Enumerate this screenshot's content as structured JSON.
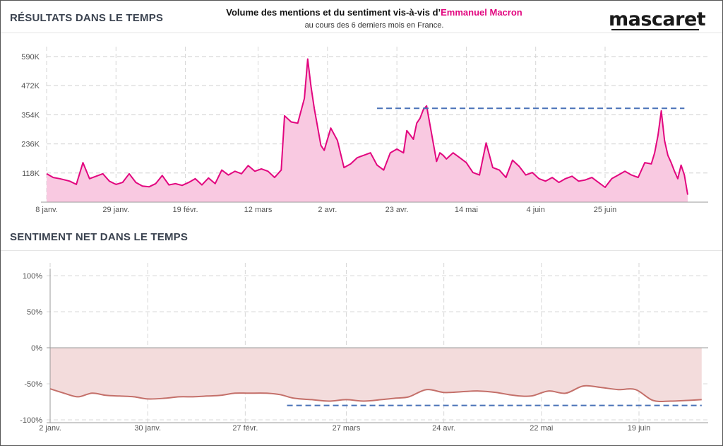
{
  "header": {
    "title_prefix": "Volume des mentions et du sentiment vis-à-vis d’",
    "title_highlight": "Emmanuel Macron",
    "subtitle": "au cours des 6 derniers mois en France.",
    "logo": "mascaret"
  },
  "colors": {
    "accent": "#e2067f",
    "area_fill": "#f9c9e1",
    "sentiment_line": "#c4706a",
    "sentiment_fill": "#f3dcdc",
    "reference_dash": "#4a72b8"
  },
  "chart_data": [
    {
      "type": "area",
      "title": "RÉSULTATS DANS LE TEMPS",
      "y_ticks": [
        118000,
        236000,
        354000,
        472000,
        590000
      ],
      "y_tick_labels": [
        "118K",
        "236K",
        "354K",
        "472K",
        "590K"
      ],
      "ylim": [
        0,
        630000
      ],
      "x_tick_labels": [
        "8 janv.",
        "29 janv.",
        "19 févr.",
        "12 mars",
        "2 avr.",
        "23 avr.",
        "14 mai",
        "4 juin",
        "25 juin"
      ],
      "x_ticks": [
        "2024-01-08",
        "2024-01-29",
        "2024-02-19",
        "2024-03-12",
        "2024-04-02",
        "2024-04-23",
        "2024-05-14",
        "2024-06-04",
        "2024-06-25"
      ],
      "grid": true,
      "series": [
        {
          "points": [
            [
              "2024-01-08",
              115000
            ],
            [
              "2024-01-10",
              100000
            ],
            [
              "2024-01-12",
              95000
            ],
            [
              "2024-01-15",
              85000
            ],
            [
              "2024-01-17",
              72000
            ],
            [
              "2024-01-19",
              160000
            ],
            [
              "2024-01-21",
              95000
            ],
            [
              "2024-01-23",
              105000
            ],
            [
              "2024-01-25",
              115000
            ],
            [
              "2024-01-27",
              85000
            ],
            [
              "2024-01-29",
              72000
            ],
            [
              "2024-01-31",
              80000
            ],
            [
              "2024-02-02",
              115000
            ],
            [
              "2024-02-04",
              80000
            ],
            [
              "2024-02-06",
              65000
            ],
            [
              "2024-02-08",
              62000
            ],
            [
              "2024-02-10",
              75000
            ],
            [
              "2024-02-12",
              108000
            ],
            [
              "2024-02-14",
              70000
            ],
            [
              "2024-02-16",
              75000
            ],
            [
              "2024-02-18",
              68000
            ],
            [
              "2024-02-20",
              80000
            ],
            [
              "2024-02-22",
              95000
            ],
            [
              "2024-02-24",
              70000
            ],
            [
              "2024-02-26",
              98000
            ],
            [
              "2024-02-28",
              75000
            ],
            [
              "2024-03-01",
              130000
            ],
            [
              "2024-03-03",
              110000
            ],
            [
              "2024-03-05",
              125000
            ],
            [
              "2024-03-07",
              115000
            ],
            [
              "2024-03-09",
              148000
            ],
            [
              "2024-03-11",
              125000
            ],
            [
              "2024-03-13",
              135000
            ],
            [
              "2024-03-15",
              125000
            ],
            [
              "2024-03-17",
              100000
            ],
            [
              "2024-03-19",
              130000
            ],
            [
              "2024-03-20",
              350000
            ],
            [
              "2024-03-22",
              325000
            ],
            [
              "2024-03-24",
              320000
            ],
            [
              "2024-03-26",
              420000
            ],
            [
              "2024-03-27",
              580000
            ],
            [
              "2024-03-28",
              470000
            ],
            [
              "2024-03-29",
              380000
            ],
            [
              "2024-03-31",
              230000
            ],
            [
              "2024-04-01",
              210000
            ],
            [
              "2024-04-03",
              300000
            ],
            [
              "2024-04-05",
              250000
            ],
            [
              "2024-04-07",
              140000
            ],
            [
              "2024-04-09",
              155000
            ],
            [
              "2024-04-11",
              180000
            ],
            [
              "2024-04-13",
              190000
            ],
            [
              "2024-04-15",
              200000
            ],
            [
              "2024-04-17",
              150000
            ],
            [
              "2024-04-19",
              130000
            ],
            [
              "2024-04-21",
              200000
            ],
            [
              "2024-04-23",
              215000
            ],
            [
              "2024-04-25",
              200000
            ],
            [
              "2024-04-26",
              290000
            ],
            [
              "2024-04-28",
              255000
            ],
            [
              "2024-04-29",
              320000
            ],
            [
              "2024-04-30",
              340000
            ],
            [
              "2024-05-01",
              375000
            ],
            [
              "2024-05-02",
              390000
            ],
            [
              "2024-05-04",
              240000
            ],
            [
              "2024-05-05",
              165000
            ],
            [
              "2024-05-06",
              200000
            ],
            [
              "2024-05-07",
              190000
            ],
            [
              "2024-05-08",
              175000
            ],
            [
              "2024-05-10",
              200000
            ],
            [
              "2024-05-12",
              180000
            ],
            [
              "2024-05-14",
              160000
            ],
            [
              "2024-05-16",
              120000
            ],
            [
              "2024-05-18",
              110000
            ],
            [
              "2024-05-20",
              240000
            ],
            [
              "2024-05-22",
              140000
            ],
            [
              "2024-05-24",
              130000
            ],
            [
              "2024-05-26",
              100000
            ],
            [
              "2024-05-28",
              170000
            ],
            [
              "2024-05-30",
              145000
            ],
            [
              "2024-06-01",
              110000
            ],
            [
              "2024-06-03",
              120000
            ],
            [
              "2024-06-05",
              95000
            ],
            [
              "2024-06-07",
              85000
            ],
            [
              "2024-06-09",
              100000
            ],
            [
              "2024-06-11",
              80000
            ],
            [
              "2024-06-13",
              95000
            ],
            [
              "2024-06-15",
              105000
            ],
            [
              "2024-06-17",
              85000
            ],
            [
              "2024-06-19",
              90000
            ],
            [
              "2024-06-21",
              100000
            ],
            [
              "2024-06-23",
              80000
            ],
            [
              "2024-06-25",
              60000
            ],
            [
              "2024-06-27",
              95000
            ],
            [
              "2024-06-29",
              110000
            ],
            [
              "2024-07-01",
              125000
            ],
            [
              "2024-07-03",
              110000
            ],
            [
              "2024-07-05",
              100000
            ],
            [
              "2024-07-07",
              160000
            ],
            [
              "2024-07-09",
              155000
            ],
            [
              "2024-07-10",
              200000
            ],
            [
              "2024-07-11",
              270000
            ],
            [
              "2024-07-12",
              370000
            ],
            [
              "2024-07-13",
              250000
            ],
            [
              "2024-07-14",
              190000
            ],
            [
              "2024-07-15",
              160000
            ],
            [
              "2024-07-16",
              125000
            ],
            [
              "2024-07-17",
              95000
            ],
            [
              "2024-07-18",
              150000
            ],
            [
              "2024-07-19",
              110000
            ],
            [
              "2024-07-20",
              30000
            ]
          ]
        }
      ],
      "reference_line": {
        "y": 380000,
        "from": "2024-04-17",
        "to": "2024-07-19",
        "style": "dashed"
      }
    },
    {
      "type": "area",
      "title": "SENTIMENT NET DANS LE TEMPS",
      "y_ticks": [
        100,
        50,
        0,
        -50,
        -100
      ],
      "y_tick_labels": [
        "100%",
        "50%",
        "0%",
        "-50%",
        "-100%"
      ],
      "ylim": [
        -100,
        100
      ],
      "x_tick_labels": [
        "2 janv.",
        "30 janv.",
        "27 févr.",
        "27 mars",
        "24 avr.",
        "22 mai",
        "19 juin"
      ],
      "x_ticks": [
        "2024-01-02",
        "2024-01-30",
        "2024-02-27",
        "2024-03-27",
        "2024-04-24",
        "2024-05-22",
        "2024-06-19"
      ],
      "grid": true,
      "series": [
        {
          "points": [
            [
              "2024-01-02",
              -57
            ],
            [
              "2024-01-06",
              -63
            ],
            [
              "2024-01-10",
              -68
            ],
            [
              "2024-01-14",
              -63
            ],
            [
              "2024-01-18",
              -66
            ],
            [
              "2024-01-22",
              -67
            ],
            [
              "2024-01-26",
              -68
            ],
            [
              "2024-01-30",
              -71
            ],
            [
              "2024-02-04",
              -70
            ],
            [
              "2024-02-08",
              -68
            ],
            [
              "2024-02-12",
              -68
            ],
            [
              "2024-02-16",
              -67
            ],
            [
              "2024-02-20",
              -66
            ],
            [
              "2024-02-24",
              -63
            ],
            [
              "2024-02-28",
              -63
            ],
            [
              "2024-03-04",
              -63
            ],
            [
              "2024-03-08",
              -65
            ],
            [
              "2024-03-12",
              -70
            ],
            [
              "2024-03-17",
              -72
            ],
            [
              "2024-03-22",
              -74
            ],
            [
              "2024-03-27",
              -72
            ],
            [
              "2024-04-01",
              -74
            ],
            [
              "2024-04-06",
              -72
            ],
            [
              "2024-04-10",
              -70
            ],
            [
              "2024-04-14",
              -68
            ],
            [
              "2024-04-19",
              -58
            ],
            [
              "2024-04-24",
              -62
            ],
            [
              "2024-04-29",
              -61
            ],
            [
              "2024-05-04",
              -60
            ],
            [
              "2024-05-09",
              -62
            ],
            [
              "2024-05-14",
              -66
            ],
            [
              "2024-05-19",
              -67
            ],
            [
              "2024-05-24",
              -60
            ],
            [
              "2024-05-29",
              -63
            ],
            [
              "2024-06-03",
              -53
            ],
            [
              "2024-06-08",
              -55
            ],
            [
              "2024-06-13",
              -58
            ],
            [
              "2024-06-18",
              -58
            ],
            [
              "2024-06-23",
              -73
            ],
            [
              "2024-06-28",
              -74
            ],
            [
              "2024-07-03",
              -73
            ],
            [
              "2024-07-07",
              -72
            ]
          ]
        }
      ],
      "reference_line": {
        "y": -80,
        "from": "2024-03-10",
        "to": "2024-07-07",
        "style": "dashed"
      }
    }
  ]
}
